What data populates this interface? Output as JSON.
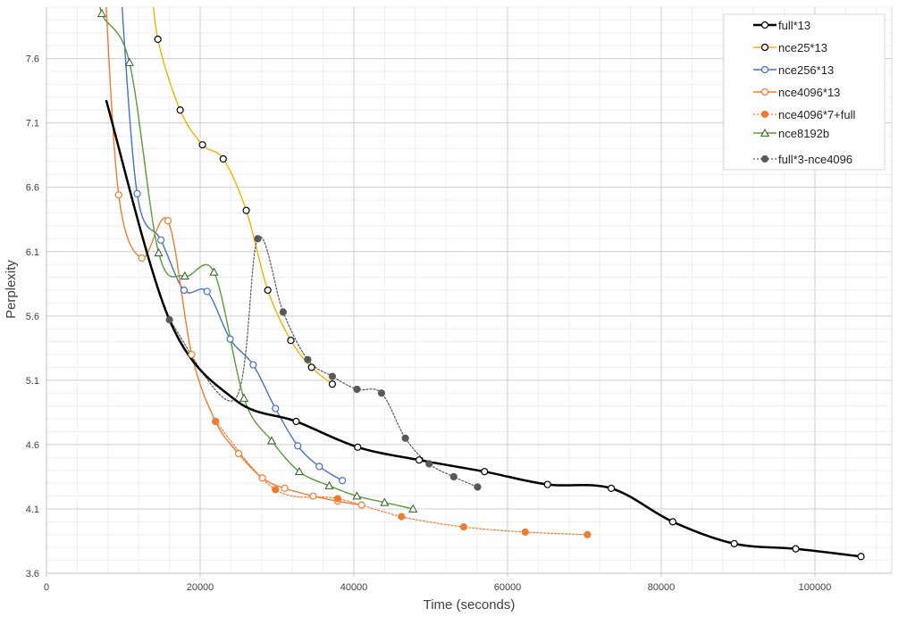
{
  "chart_data": {
    "type": "line",
    "title": "",
    "xlabel": "Time (seconds)",
    "ylabel": "Perplexity",
    "xlim": [
      0,
      110000
    ],
    "ylim": [
      3.6,
      8.0
    ],
    "x_ticks": [
      0,
      20000,
      40000,
      60000,
      80000,
      100000
    ],
    "x_tick_labels": [
      "0",
      "20000",
      "40000",
      "60000",
      "80000",
      "100000"
    ],
    "y_ticks": [
      3.6,
      4.1,
      4.6,
      5.1,
      5.6,
      6.1,
      6.6,
      7.1,
      7.6
    ],
    "y_tick_labels": [
      "3.6",
      "4.1",
      "4.6",
      "5.1",
      "5.6",
      "6.1",
      "6.6",
      "7.1",
      "7.6"
    ],
    "grid": true,
    "legend_position": "top-right",
    "series": [
      {
        "name": "full*13",
        "color": "#000000",
        "line_style": "solid",
        "line_width": 2.5,
        "marker": "circle-open",
        "points": [
          [
            7800,
            7.27
          ],
          [
            16000,
            5.57
          ],
          [
            24500,
            4.95
          ],
          [
            32500,
            4.78
          ],
          [
            40500,
            4.58
          ],
          [
            48500,
            4.48
          ],
          [
            57000,
            4.39
          ],
          [
            65200,
            4.29
          ],
          [
            73500,
            4.26
          ],
          [
            81500,
            4.0
          ],
          [
            89500,
            3.83
          ],
          [
            97500,
            3.79
          ],
          [
            106000,
            3.73
          ]
        ],
        "marker_points": [
          [
            40500,
            4.58
          ],
          [
            48500,
            4.48
          ],
          [
            57000,
            4.39
          ],
          [
            65200,
            4.29
          ],
          [
            73500,
            4.26
          ],
          [
            81500,
            4.0
          ],
          [
            89500,
            3.83
          ],
          [
            97500,
            3.79
          ],
          [
            106000,
            3.73
          ]
        ],
        "leading_points": [
          [
            32500,
            4.78
          ]
        ]
      },
      {
        "name": "nce25*13",
        "color": "#f0b400",
        "line_style": "solid",
        "line_width": 1.4,
        "marker": "circle-open",
        "points": [
          [
            13500,
            8.3
          ],
          [
            14500,
            7.75
          ],
          [
            17400,
            7.2
          ],
          [
            20300,
            6.93
          ],
          [
            23000,
            6.82
          ],
          [
            26000,
            6.42
          ],
          [
            28800,
            5.8
          ],
          [
            31800,
            5.41
          ],
          [
            34500,
            5.2
          ],
          [
            37200,
            5.07
          ]
        ]
      },
      {
        "name": "nce256*13",
        "color": "#4472c4",
        "line_style": "solid",
        "line_width": 1.4,
        "marker": "circle-open",
        "points": [
          [
            9500,
            8.3
          ],
          [
            11800,
            6.55
          ],
          [
            14900,
            6.19
          ],
          [
            17900,
            5.8
          ],
          [
            20900,
            5.79
          ],
          [
            23900,
            5.42
          ],
          [
            26900,
            5.22
          ],
          [
            29800,
            4.88
          ],
          [
            32700,
            4.59
          ],
          [
            35500,
            4.43
          ],
          [
            38500,
            4.32
          ]
        ]
      },
      {
        "name": "nce4096*13",
        "color": "#ed7d31",
        "line_style": "solid",
        "line_width": 1.4,
        "marker": "circle-open",
        "points": [
          [
            7500,
            8.3
          ],
          [
            9400,
            6.54
          ],
          [
            12400,
            6.05
          ],
          [
            15800,
            6.34
          ],
          [
            18900,
            5.3
          ],
          [
            22000,
            4.78
          ],
          [
            25000,
            4.53
          ],
          [
            28100,
            4.34
          ],
          [
            31000,
            4.26
          ],
          [
            34700,
            4.2
          ],
          [
            37900,
            4.16
          ],
          [
            41000,
            4.13
          ]
        ]
      },
      {
        "name": "nce4096*7+full",
        "color": "#ed7d31",
        "line_style": "dotted",
        "line_width": 1.2,
        "marker": "circle-filled",
        "points": [
          [
            22000,
            4.78
          ],
          [
            29800,
            4.25
          ],
          [
            37900,
            4.18
          ],
          [
            46200,
            4.04
          ],
          [
            54300,
            3.96
          ],
          [
            62300,
            3.92
          ],
          [
            70400,
            3.9
          ]
        ]
      },
      {
        "name": "nce8192b",
        "color": "#5a9a3c",
        "line_style": "solid",
        "line_width": 1.4,
        "marker": "triangle-open",
        "points": [
          [
            6500,
            8.3
          ],
          [
            7200,
            7.95
          ],
          [
            10800,
            7.57
          ],
          [
            14600,
            6.09
          ],
          [
            18000,
            5.91
          ],
          [
            21800,
            5.94
          ],
          [
            25700,
            4.96
          ],
          [
            29300,
            4.63
          ],
          [
            32900,
            4.39
          ],
          [
            36800,
            4.28
          ],
          [
            40400,
            4.2
          ],
          [
            44000,
            4.15
          ],
          [
            47700,
            4.1
          ]
        ]
      },
      {
        "name": "full*3-nce4096",
        "color": "#595959",
        "line_style": "dotted",
        "line_width": 1.2,
        "marker": "circle-filled",
        "points": [
          [
            16000,
            5.57
          ],
          [
            24500,
            4.95
          ],
          [
            27500,
            6.2
          ],
          [
            30800,
            5.63
          ],
          [
            34000,
            5.26
          ],
          [
            37200,
            5.13
          ],
          [
            40400,
            5.03
          ],
          [
            43600,
            5.0
          ],
          [
            46700,
            4.65
          ],
          [
            49800,
            4.45
          ],
          [
            53000,
            4.35
          ],
          [
            56100,
            4.27
          ]
        ],
        "marker_points": [
          [
            16000,
            5.57
          ],
          [
            27500,
            6.2
          ],
          [
            30800,
            5.63
          ],
          [
            34000,
            5.26
          ],
          [
            37200,
            5.13
          ],
          [
            40400,
            5.03
          ],
          [
            43600,
            5.0
          ],
          [
            46700,
            4.65
          ],
          [
            49800,
            4.45
          ],
          [
            53000,
            4.35
          ],
          [
            56100,
            4.27
          ]
        ]
      }
    ]
  }
}
